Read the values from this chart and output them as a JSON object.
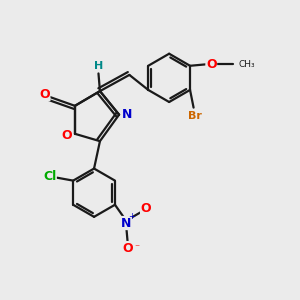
{
  "background_color": "#ebebeb",
  "bond_color": "#1a1a1a",
  "atom_colors": {
    "O": "#ff0000",
    "N": "#0000cc",
    "Cl": "#00aa00",
    "Br": "#cc6600",
    "H": "#008888",
    "C": "#1a1a1a"
  },
  "figsize": [
    3.0,
    3.0
  ],
  "dpi": 100
}
